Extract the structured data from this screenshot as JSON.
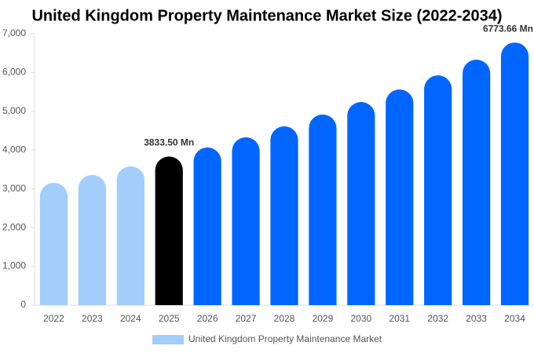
{
  "chart_data": {
    "type": "bar",
    "title": "United Kingdom Property Maintenance Market Size (2022-2034)",
    "categories": [
      "2022",
      "2023",
      "2024",
      "2025",
      "2026",
      "2027",
      "2028",
      "2029",
      "2030",
      "2031",
      "2032",
      "2033",
      "2034"
    ],
    "series": [
      {
        "name": "United Kingdom Property Maintenance Market",
        "color": "#a3cdfb",
        "values": [
          3156,
          3358,
          3581,
          3833.5,
          4066,
          4329,
          4612,
          4916,
          5240,
          5563,
          5927,
          6332,
          6773.66
        ],
        "value_labels": [
          null,
          null,
          null,
          "3833.50 Mn",
          null,
          null,
          null,
          null,
          null,
          null,
          null,
          null,
          "6773.66 Mn"
        ],
        "colors": [
          "#a3cdfb",
          "#a3cdfb",
          "#a3cdfb",
          "#000000",
          "#0066ff",
          "#0066ff",
          "#0066ff",
          "#0066ff",
          "#0066ff",
          "#0066ff",
          "#0066ff",
          "#0066ff",
          "#0066ff"
        ]
      }
    ],
    "ylim": [
      0,
      7000
    ],
    "yticks": [
      0,
      {
        "value": 1000,
        "label": "1,000"
      },
      {
        "value": 2000,
        "label": "2,000"
      },
      {
        "value": 3000,
        "label": "3,000"
      },
      {
        "value": 4000,
        "label": "4,000"
      },
      {
        "value": 5000,
        "label": "5,000"
      },
      {
        "value": 6000,
        "label": "6,000"
      },
      {
        "value": 7000,
        "label": "7,000"
      }
    ],
    "grid": false
  }
}
